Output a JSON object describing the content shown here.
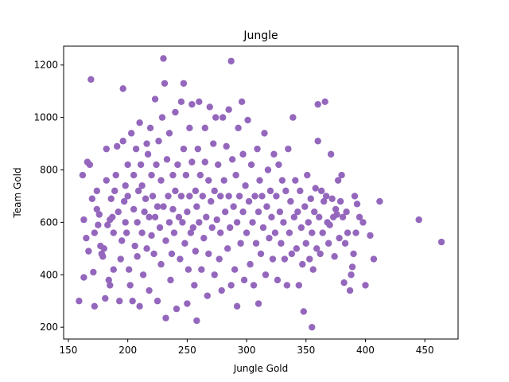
{
  "chart_data": {
    "type": "scatter",
    "title": "Jungle",
    "xlabel": "Jungle Gold",
    "ylabel": "Team Gold",
    "xlim": [
      146,
      478
    ],
    "ylim": [
      155,
      1272
    ],
    "xticks": [
      150,
      200,
      250,
      300,
      350,
      400,
      450
    ],
    "yticks": [
      200,
      400,
      600,
      800,
      1000,
      1200
    ],
    "grid": false,
    "legend": "none",
    "marker_color": "#9467bd",
    "series": [
      {
        "points": [
          [
            159,
            300
          ],
          [
            162,
            780
          ],
          [
            163,
            390
          ],
          [
            163,
            610
          ],
          [
            165,
            540
          ],
          [
            166,
            830
          ],
          [
            167,
            490
          ],
          [
            168,
            820
          ],
          [
            169,
            1145
          ],
          [
            170,
            690
          ],
          [
            171,
            410
          ],
          [
            172,
            560
          ],
          [
            172,
            280
          ],
          [
            174,
            720
          ],
          [
            174,
            650
          ],
          [
            175,
            590
          ],
          [
            176,
            630
          ],
          [
            177,
            510
          ],
          [
            178,
            480
          ],
          [
            179,
            470
          ],
          [
            180,
            500
          ],
          [
            181,
            310
          ],
          [
            182,
            760
          ],
          [
            182,
            880
          ],
          [
            183,
            590
          ],
          [
            184,
            380
          ],
          [
            185,
            360
          ],
          [
            185,
            610
          ],
          [
            186,
            690
          ],
          [
            187,
            620
          ],
          [
            188,
            420
          ],
          [
            188,
            560
          ],
          [
            189,
            720
          ],
          [
            190,
            780
          ],
          [
            191,
            890
          ],
          [
            192,
            640
          ],
          [
            193,
            300
          ],
          [
            194,
            460
          ],
          [
            195,
            530
          ],
          [
            196,
            1110
          ],
          [
            196,
            910
          ],
          [
            197,
            680
          ],
          [
            198,
            740
          ],
          [
            198,
            600
          ],
          [
            199,
            560
          ],
          [
            200,
            820
          ],
          [
            200,
            700
          ],
          [
            201,
            420
          ],
          [
            202,
            360
          ],
          [
            203,
            940
          ],
          [
            204,
            300
          ],
          [
            205,
            650
          ],
          [
            205,
            780
          ],
          [
            206,
            510
          ],
          [
            207,
            880
          ],
          [
            208,
            470
          ],
          [
            208,
            600
          ],
          [
            209,
            720
          ],
          [
            210,
            280
          ],
          [
            210,
            980
          ],
          [
            211,
            820
          ],
          [
            212,
            740
          ],
          [
            212,
            560
          ],
          [
            213,
            400
          ],
          [
            214,
            640
          ],
          [
            215,
            690
          ],
          [
            216,
            900
          ],
          [
            216,
            500
          ],
          [
            217,
            860
          ],
          [
            218,
            620
          ],
          [
            218,
            340
          ],
          [
            219,
            960
          ],
          [
            220,
            780
          ],
          [
            220,
            550
          ],
          [
            221,
            700
          ],
          [
            222,
            480
          ],
          [
            223,
            1070
          ],
          [
            223,
            620
          ],
          [
            224,
            820
          ],
          [
            225,
            300
          ],
          [
            225,
            660
          ],
          [
            226,
            910
          ],
          [
            227,
            580
          ],
          [
            228,
            760
          ],
          [
            228,
            440
          ],
          [
            229,
            1000
          ],
          [
            230,
            1225
          ],
          [
            230,
            660
          ],
          [
            231,
            1130
          ],
          [
            232,
            235
          ],
          [
            232,
            530
          ],
          [
            233,
            840
          ],
          [
            234,
            700
          ],
          [
            235,
            600
          ],
          [
            235,
            940
          ],
          [
            236,
            380
          ],
          [
            237,
            480
          ],
          [
            238,
            780
          ],
          [
            238,
            650
          ],
          [
            239,
            560
          ],
          [
            240,
            1020
          ],
          [
            240,
            720
          ],
          [
            241,
            270
          ],
          [
            242,
            820
          ],
          [
            243,
            620
          ],
          [
            244,
            460
          ],
          [
            245,
            1060
          ],
          [
            245,
            700
          ],
          [
            246,
            600
          ],
          [
            247,
            1130
          ],
          [
            247,
            880
          ],
          [
            248,
            520
          ],
          [
            249,
            780
          ],
          [
            250,
            290
          ],
          [
            250,
            640
          ],
          [
            251,
            420
          ],
          [
            252,
            960
          ],
          [
            252,
            700
          ],
          [
            253,
            560
          ],
          [
            254,
            830
          ],
          [
            254,
            1050
          ],
          [
            255,
            580
          ],
          [
            256,
            360
          ],
          [
            257,
            720
          ],
          [
            257,
            490
          ],
          [
            258,
            225
          ],
          [
            258,
            660
          ],
          [
            259,
            880
          ],
          [
            260,
            600
          ],
          [
            260,
            1060
          ],
          [
            261,
            780
          ],
          [
            262,
            420
          ],
          [
            263,
            700
          ],
          [
            264,
            540
          ],
          [
            265,
            830
          ],
          [
            265,
            960
          ],
          [
            266,
            620
          ],
          [
            267,
            320
          ],
          [
            268,
            760
          ],
          [
            268,
            480
          ],
          [
            269,
            1040
          ],
          [
            270,
            680
          ],
          [
            271,
            580
          ],
          [
            272,
            900
          ],
          [
            273,
            400
          ],
          [
            273,
            720
          ],
          [
            274,
            1000
          ],
          [
            275,
            610
          ],
          [
            276,
            820
          ],
          [
            277,
            460
          ],
          [
            278,
            700
          ],
          [
            278,
            560
          ],
          [
            279,
            340
          ],
          [
            280,
            1000
          ],
          [
            281,
            760
          ],
          [
            282,
            640
          ],
          [
            283,
            890
          ],
          [
            284,
            500
          ],
          [
            285,
            1030
          ],
          [
            285,
            700
          ],
          [
            286,
            580
          ],
          [
            287,
            1215
          ],
          [
            287,
            360
          ],
          [
            288,
            840
          ],
          [
            289,
            660
          ],
          [
            290,
            420
          ],
          [
            291,
            780
          ],
          [
            292,
            280
          ],
          [
            292,
            600
          ],
          [
            293,
            960
          ],
          [
            294,
            700
          ],
          [
            295,
            520
          ],
          [
            296,
            1060
          ],
          [
            297,
            860
          ],
          [
            297,
            640
          ],
          [
            298,
            380
          ],
          [
            299,
            740
          ],
          [
            300,
            560
          ],
          [
            301,
            990
          ],
          [
            302,
            680
          ],
          [
            303,
            440
          ],
          [
            304,
            820
          ],
          [
            305,
            600
          ],
          [
            306,
            360
          ],
          [
            307,
            700
          ],
          [
            308,
            520
          ],
          [
            309,
            880
          ],
          [
            310,
            290
          ],
          [
            310,
            640
          ],
          [
            311,
            760
          ],
          [
            312,
            480
          ],
          [
            313,
            700
          ],
          [
            314,
            580
          ],
          [
            315,
            940
          ],
          [
            316,
            400
          ],
          [
            317,
            660
          ],
          [
            318,
            800
          ],
          [
            319,
            540
          ],
          [
            320,
            720
          ],
          [
            321,
            620
          ],
          [
            322,
            460
          ],
          [
            323,
            860
          ],
          [
            324,
            560
          ],
          [
            325,
            700
          ],
          [
            326,
            380
          ],
          [
            327,
            820
          ],
          [
            328,
            640
          ],
          [
            329,
            520
          ],
          [
            330,
            760
          ],
          [
            331,
            600
          ],
          [
            332,
            460
          ],
          [
            333,
            720
          ],
          [
            334,
            360
          ],
          [
            335,
            880
          ],
          [
            336,
            560
          ],
          [
            337,
            680
          ],
          [
            338,
            480
          ],
          [
            339,
            1000
          ],
          [
            340,
            620
          ],
          [
            341,
            760
          ],
          [
            342,
            500
          ],
          [
            343,
            640
          ],
          [
            344,
            360
          ],
          [
            345,
            720
          ],
          [
            346,
            580
          ],
          [
            347,
            440
          ],
          [
            348,
            260
          ],
          [
            349,
            660
          ],
          [
            350,
            520
          ],
          [
            351,
            780
          ],
          [
            352,
            600
          ],
          [
            353,
            460
          ],
          [
            354,
            690
          ],
          [
            355,
            200
          ],
          [
            355,
            560
          ],
          [
            356,
            420
          ],
          [
            357,
            640
          ],
          [
            358,
            730
          ],
          [
            359,
            500
          ],
          [
            360,
            1050
          ],
          [
            360,
            910
          ],
          [
            361,
            620
          ],
          [
            362,
            480
          ],
          [
            363,
            720
          ],
          [
            364,
            560
          ],
          [
            365,
            680
          ],
          [
            366,
            1060
          ],
          [
            367,
            700
          ],
          [
            368,
            600
          ],
          [
            369,
            520
          ],
          [
            370,
            590
          ],
          [
            371,
            860
          ],
          [
            372,
            690
          ],
          [
            373,
            620
          ],
          [
            374,
            470
          ],
          [
            375,
            650
          ],
          [
            376,
            630
          ],
          [
            377,
            760
          ],
          [
            378,
            540
          ],
          [
            379,
            680
          ],
          [
            380,
            780
          ],
          [
            381,
            620
          ],
          [
            382,
            370
          ],
          [
            383,
            520
          ],
          [
            384,
            640
          ],
          [
            385,
            560
          ],
          [
            387,
            340
          ],
          [
            388,
            400
          ],
          [
            389,
            430
          ],
          [
            390,
            480
          ],
          [
            391,
            700
          ],
          [
            392,
            560
          ],
          [
            393,
            670
          ],
          [
            395,
            620
          ],
          [
            398,
            600
          ],
          [
            400,
            360
          ],
          [
            404,
            550
          ],
          [
            407,
            460
          ],
          [
            412,
            680
          ],
          [
            445,
            610
          ],
          [
            464,
            525
          ]
        ]
      }
    ]
  }
}
